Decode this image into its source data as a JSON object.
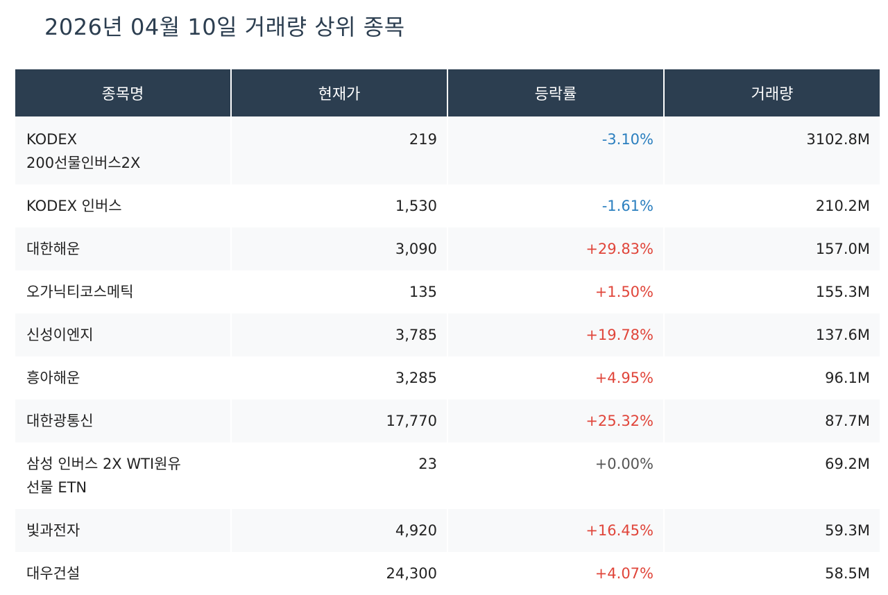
{
  "page": {
    "title": "2026년 04월 10일 거래량 상위 종목"
  },
  "table": {
    "columns": [
      "종목명",
      "현재가",
      "등락률",
      "거래량"
    ],
    "rows": [
      {
        "name": "KODEX\n200선물인버스2X",
        "price": "219",
        "change": "-3.10%",
        "direction": "down",
        "volume": "3102.8M"
      },
      {
        "name": "KODEX 인버스",
        "price": "1,530",
        "change": "-1.61%",
        "direction": "down",
        "volume": "210.2M"
      },
      {
        "name": "대한해운",
        "price": "3,090",
        "change": "+29.83%",
        "direction": "up",
        "volume": "157.0M"
      },
      {
        "name": "오가닉티코스메틱",
        "price": "135",
        "change": "+1.50%",
        "direction": "up",
        "volume": "155.3M"
      },
      {
        "name": "신성이엔지",
        "price": "3,785",
        "change": "+19.78%",
        "direction": "up",
        "volume": "137.6M"
      },
      {
        "name": "흥아해운",
        "price": "3,285",
        "change": "+4.95%",
        "direction": "up",
        "volume": "96.1M"
      },
      {
        "name": "대한광통신",
        "price": "17,770",
        "change": "+25.32%",
        "direction": "up",
        "volume": "87.7M"
      },
      {
        "name": "삼성 인버스 2X WTI원유\n선물 ETN",
        "price": "23",
        "change": "+0.00%",
        "direction": "flat",
        "volume": "69.2M"
      },
      {
        "name": "빛과전자",
        "price": "4,920",
        "change": "+16.45%",
        "direction": "up",
        "volume": "59.3M"
      },
      {
        "name": "대우건설",
        "price": "24,300",
        "change": "+4.07%",
        "direction": "up",
        "volume": "58.5M"
      }
    ]
  },
  "colors": {
    "header_bg": "#2c3e50",
    "title": "#2c3e50",
    "up": "#e0453a",
    "down": "#2b7fbf",
    "flat": "#555555",
    "row_alt_bg": "#f8f9fa"
  }
}
